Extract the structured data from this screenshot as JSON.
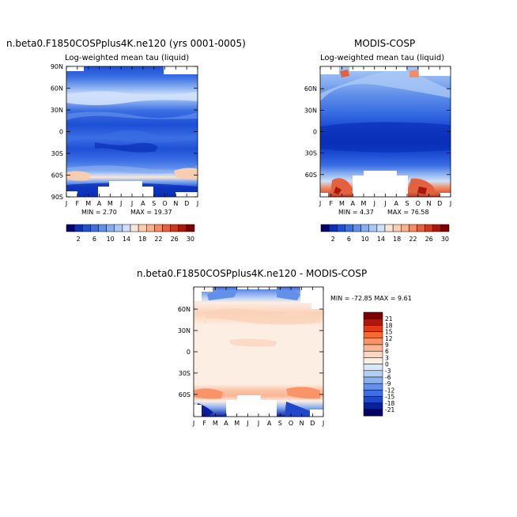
{
  "chart_data": [
    {
      "type": "heatmap",
      "title": "n.beta0.F1850COSPplus4K.ne120 (yrs 0001-0005)",
      "subtitle": "Log-weighted mean tau (liquid)",
      "x_ticks": [
        "J",
        "F",
        "M",
        "A",
        "M",
        "J",
        "J",
        "A",
        "S",
        "O",
        "N",
        "D",
        "J"
      ],
      "y_ticks": [
        "90N",
        "60N",
        "30N",
        "0",
        "30S",
        "60S",
        "90S"
      ],
      "min_label": "MIN =   2.70",
      "max_label": "MAX =  19.37",
      "colorbar": {
        "labels": [
          "2",
          "6",
          "10",
          "14",
          "18",
          "22",
          "26",
          "30"
        ],
        "colors": [
          "#08006e",
          "#0a2fb8",
          "#1e4fd6",
          "#3a6ee3",
          "#5f8fea",
          "#86adf0",
          "#a9c8f5",
          "#cfe0fa",
          "#fbe6d6",
          "#f9cdb0",
          "#f7b08c",
          "#f28b66",
          "#e2613f",
          "#c8391f",
          "#a5180c",
          "#780000"
        ]
      }
    },
    {
      "type": "heatmap",
      "title": "MODIS-COSP",
      "subtitle": "Log-weighted mean tau (liquid)",
      "x_ticks": [
        "J",
        "F",
        "M",
        "A",
        "M",
        "J",
        "J",
        "A",
        "S",
        "O",
        "N",
        "D",
        "J"
      ],
      "y_ticks": [
        "60N",
        "30N",
        "0",
        "30S",
        "60S"
      ],
      "min_label": "MIN =   4.37",
      "max_label": "MAX =  76.58",
      "colorbar": {
        "labels": [
          "2",
          "6",
          "10",
          "14",
          "18",
          "22",
          "26",
          "30"
        ],
        "colors": [
          "#08006e",
          "#0a2fb8",
          "#1e4fd6",
          "#3a6ee3",
          "#5f8fea",
          "#86adf0",
          "#a9c8f5",
          "#cfe0fa",
          "#fbe6d6",
          "#f9cdb0",
          "#f7b08c",
          "#f28b66",
          "#e2613f",
          "#c8391f",
          "#a5180c",
          "#780000"
        ]
      }
    },
    {
      "type": "heatmap",
      "title": "n.beta0.F1850COSPplus4K.ne120  -  MODIS-COSP",
      "x_ticks": [
        "J",
        "F",
        "M",
        "A",
        "M",
        "J",
        "J",
        "A",
        "S",
        "O",
        "N",
        "D",
        "J"
      ],
      "y_ticks": [
        "60N",
        "30N",
        "0",
        "30S",
        "60S"
      ],
      "stats_label": "MIN = -72.85  MAX =   9.61",
      "colorbar": {
        "labels": [
          "21",
          "18",
          "15",
          "12",
          "9",
          "6",
          "3",
          "0",
          "-3",
          "-6",
          "-9",
          "-12",
          "-15",
          "-18",
          "-21"
        ],
        "colors": [
          "#7d0000",
          "#b0170b",
          "#e23b14",
          "#f76a2e",
          "#f99468",
          "#fbb596",
          "#fdd6c0",
          "#fdeee4",
          "#d8e7fb",
          "#b3cdf5",
          "#8ab0ef",
          "#6390e8",
          "#3f6fe0",
          "#2048c8",
          "#0a1f9e",
          "#03006a"
        ]
      }
    }
  ]
}
